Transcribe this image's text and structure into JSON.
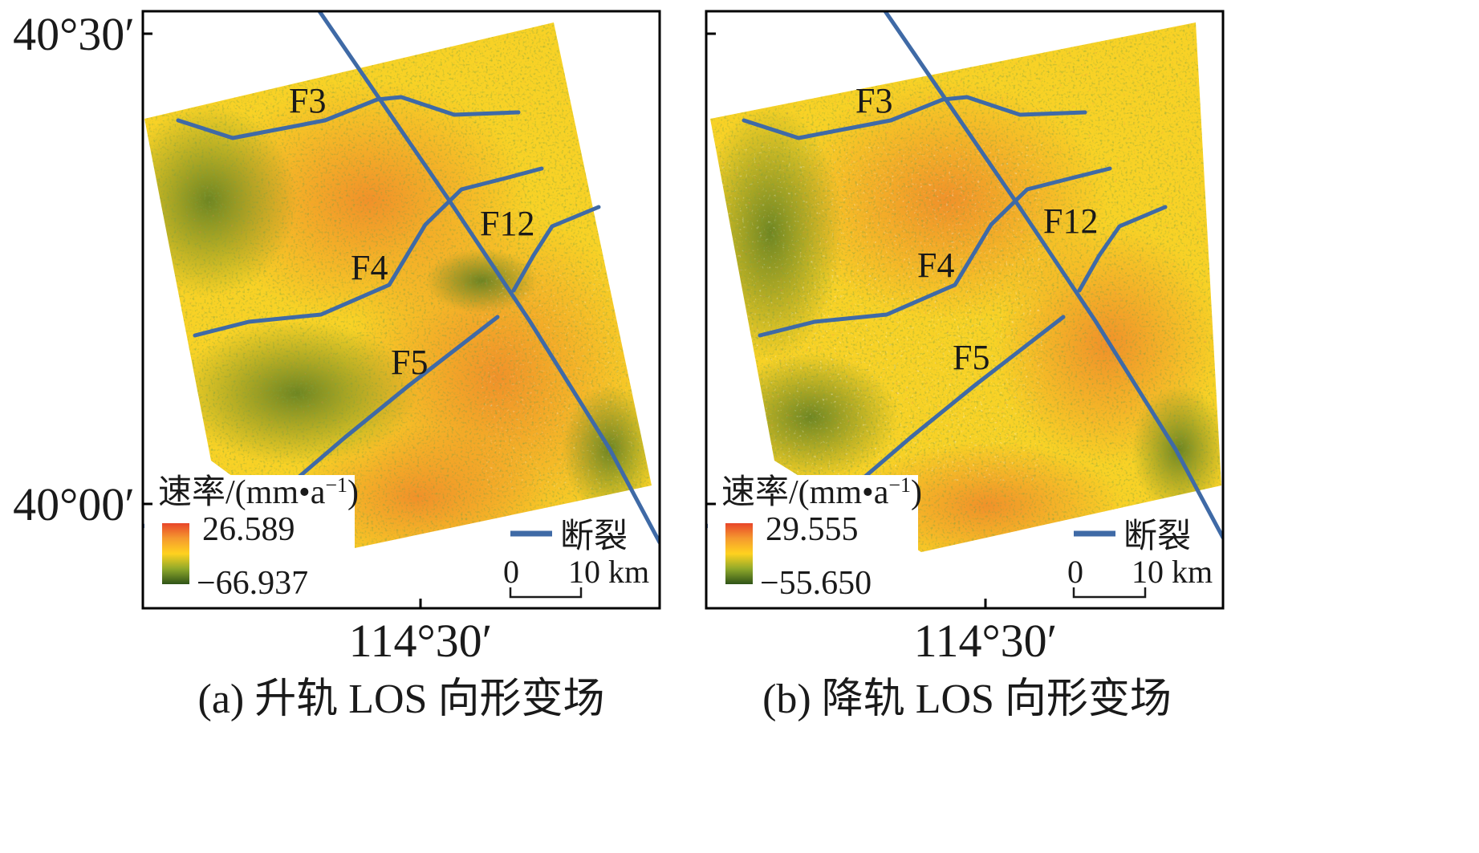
{
  "axes": {
    "lat_top": "40°30′",
    "lat_bottom": "40°00′",
    "lon": "114°30′"
  },
  "legend": {
    "title": "速率/(mm•a",
    "title_sup": "−1",
    "title_close": ")",
    "fault_label": "断裂",
    "scale_zero": "0",
    "scale_ten": "10 km"
  },
  "panels": [
    {
      "caption": "(a) 升轨 LOS 向形变场",
      "max": "26.589",
      "min": "−66.937",
      "faults": {
        "f3": "F3",
        "f4": "F4",
        "f5": "F5",
        "f12": "F12"
      }
    },
    {
      "caption": "(b) 降轨 LOS 向形变场",
      "max": "29.555",
      "min": "−55.650",
      "faults": {
        "f3": "F3",
        "f4": "F4",
        "f5": "F5",
        "f12": "F12"
      }
    }
  ],
  "colors": {
    "fault_line": "#3f6aa6",
    "high": "#e8452a",
    "mid": "#ffd21f",
    "low": "#3d5a1e",
    "frame": "#000000"
  }
}
